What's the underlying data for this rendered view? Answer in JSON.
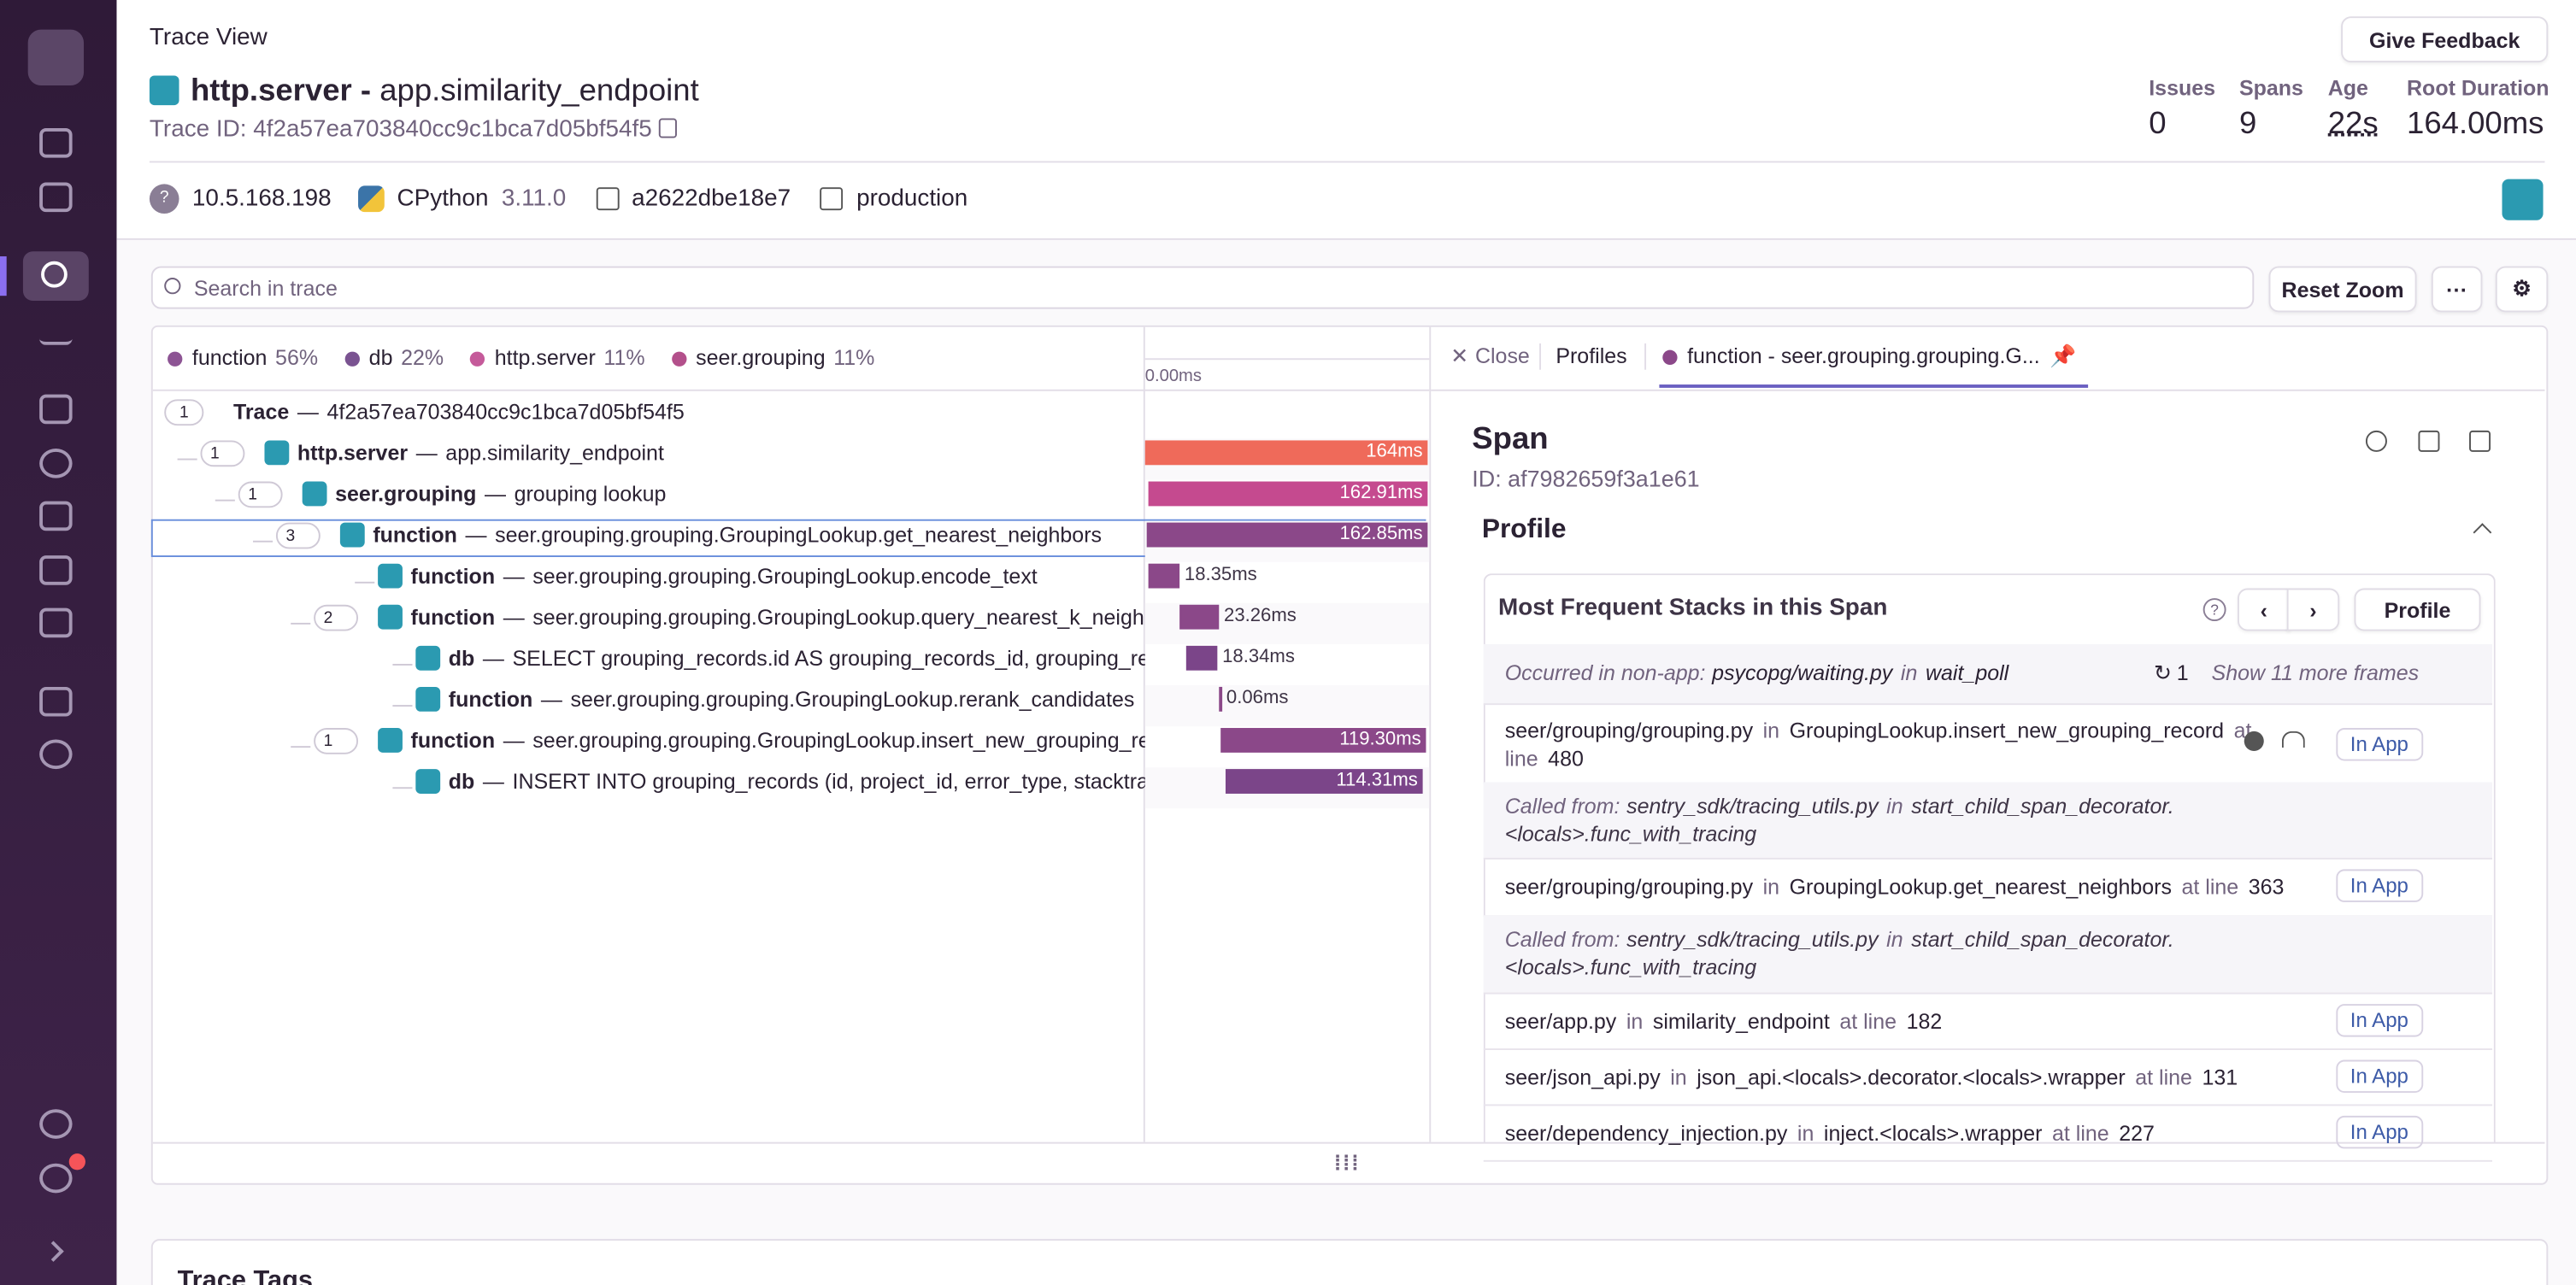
{
  "header": {
    "page_title": "Trace View",
    "feedback": "Give Feedback",
    "op": "http.server -",
    "name": "app.similarity_endpoint",
    "trace_id_label": "Trace ID:",
    "trace_id": "4f2a57ea703840cc9c1bca7d05bf54f5",
    "stats": [
      {
        "label": "Issues",
        "value": "0"
      },
      {
        "label": "Spans",
        "value": "9"
      },
      {
        "label": "Age",
        "value": "22s"
      },
      {
        "label": "Root Duration",
        "value": "164.00ms"
      }
    ]
  },
  "tags": {
    "ip": "10.5.168.198",
    "runtime": "CPython",
    "runtime_version": "3.11.0",
    "host": "a2622dbe18e7",
    "environment": "production"
  },
  "toolbar": {
    "search_placeholder": "Search in trace",
    "reset_zoom": "Reset Zoom"
  },
  "legend": [
    {
      "name": "function",
      "pct": "56%"
    },
    {
      "name": "db",
      "pct": "22%"
    },
    {
      "name": "http.server",
      "pct": "11%"
    },
    {
      "name": "seer.grouping",
      "pct": "11%"
    }
  ],
  "trace": {
    "timeline_start": "0.00ms",
    "sep": "—",
    "rows": [
      {
        "count": "1",
        "op": "Trace",
        "desc": "4f2a57ea703840cc9c1bca7d05bf54f5",
        "duration": null
      },
      {
        "count": "1",
        "op": "http.server",
        "desc": "app.similarity_endpoint",
        "duration": "164ms"
      },
      {
        "count": "1",
        "op": "seer.grouping",
        "desc": "grouping lookup",
        "duration": "162.91ms"
      },
      {
        "count": "3",
        "op": "function",
        "desc": "seer.grouping.grouping.GroupingLookup.get_nearest_neighbors",
        "duration": "162.85ms"
      },
      {
        "count": null,
        "op": "function",
        "desc": "seer.grouping.grouping.GroupingLookup.encode_text",
        "duration": "18.35ms"
      },
      {
        "count": "2",
        "op": "function",
        "desc": "seer.grouping.grouping.GroupingLookup.query_nearest_k_neighbors",
        "duration": "23.26ms"
      },
      {
        "count": null,
        "op": "db",
        "desc": "SELECT grouping_records.id AS grouping_records_id, grouping_records",
        "duration": "18.34ms"
      },
      {
        "count": null,
        "op": "function",
        "desc": "seer.grouping.grouping.GroupingLookup.rerank_candidates",
        "duration": "0.06ms"
      },
      {
        "count": "1",
        "op": "function",
        "desc": "seer.grouping.grouping.GroupingLookup.insert_new_grouping_record",
        "duration": "119.30ms"
      },
      {
        "count": null,
        "op": "db",
        "desc": "INSERT INTO grouping_records (id, project_id, error_type, stacktrace",
        "duration": "114.31ms"
      }
    ]
  },
  "panel": {
    "tabs": [
      "Close",
      "Profiles",
      "function - seer.grouping.grouping.G..."
    ],
    "title": "Span",
    "id_label": "ID:",
    "id": "af7982659f3a1e61",
    "section": "Profile",
    "card_title": "Most Frequent Stacks in this Span",
    "profile_button": "Profile",
    "words": {
      "in": "in",
      "at_line": "at line",
      "in_app": "In App",
      "called_from": "Called from:"
    },
    "non_app": {
      "label": "Occurred in non-app:",
      "file": "psycopg/waiting.py",
      "func": "wait_poll",
      "count": "1",
      "more": "Show 11 more frames"
    },
    "frames": [
      {
        "kind": "app",
        "file": "seer/grouping/grouping.py",
        "func": "GroupingLookup.insert_new_grouping_record",
        "line": "480"
      },
      {
        "kind": "called",
        "file": "sentry_sdk/tracing_utils.py",
        "func": "start_child_span_decorator.<locals>.func_with_tracing"
      },
      {
        "kind": "app",
        "file": "seer/grouping/grouping.py",
        "func": "GroupingLookup.get_nearest_neighbors",
        "line": "363"
      },
      {
        "kind": "called",
        "file": "sentry_sdk/tracing_utils.py",
        "func": "start_child_span_decorator.<locals>.func_with_tracing"
      },
      {
        "kind": "app",
        "file": "seer/app.py",
        "func": "similarity_endpoint",
        "line": "182"
      },
      {
        "kind": "app",
        "file": "seer/json_api.py",
        "func": "json_api.<locals>.decorator.<locals>.wrapper",
        "line": "131"
      },
      {
        "kind": "app",
        "file": "seer/dependency_injection.py",
        "func": "inject.<locals>.wrapper",
        "line": "227"
      }
    ]
  },
  "footer": {
    "section": "Trace Tags"
  }
}
